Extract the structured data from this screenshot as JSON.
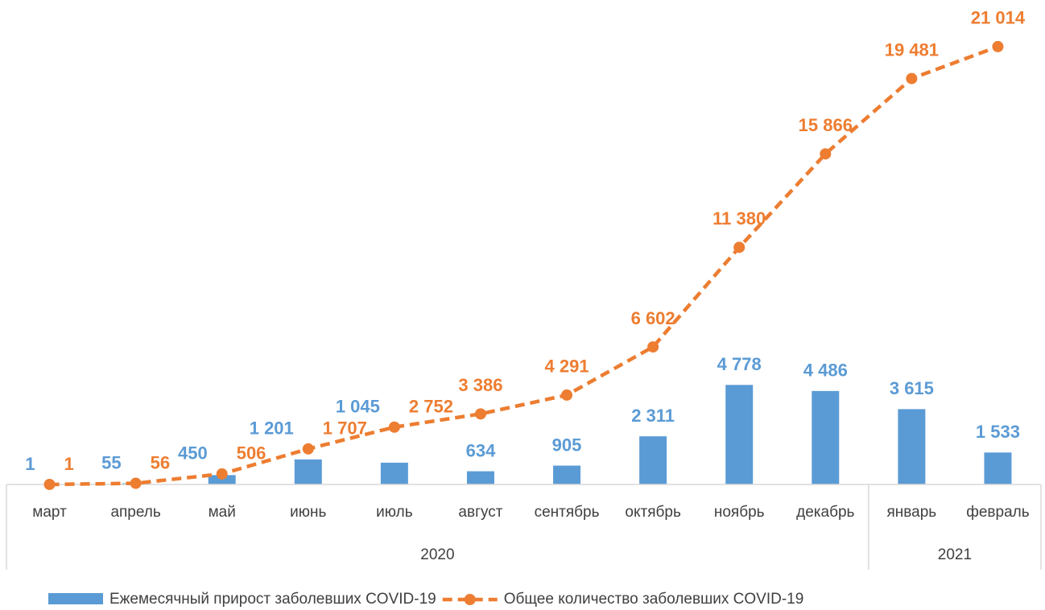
{
  "chart_data": {
    "type": "bar-line",
    "categories": [
      "март",
      "апрель",
      "май",
      "июнь",
      "июль",
      "август",
      "сентябрь",
      "октябрь",
      "ноябрь",
      "декабрь",
      "январь",
      "февраль"
    ],
    "x_groups": [
      {
        "label": "2020",
        "span": 10
      },
      {
        "label": "2021",
        "span": 2
      }
    ],
    "series": [
      {
        "name": "Ежемесячный прирост заболевших COVID-19",
        "type": "bar",
        "color": "#5b9bd5",
        "values": [
          1,
          55,
          450,
          1201,
          1045,
          634,
          905,
          2311,
          4778,
          4486,
          3615,
          1533
        ],
        "value_labels": [
          "1",
          "55",
          "450",
          "1 201",
          "1 045",
          "634",
          "905",
          "2 311",
          "4 778",
          "4 486",
          "3 615",
          "1 533"
        ]
      },
      {
        "name": "Общее количество заболевших COVID-19",
        "type": "line",
        "color": "#ed7d31",
        "values": [
          1,
          56,
          506,
          1707,
          2752,
          3386,
          4291,
          6602,
          11380,
          15866,
          19481,
          21014
        ],
        "value_labels": [
          "1",
          "56",
          "506",
          "1 707",
          "2 752",
          "3 386",
          "4 291",
          "6 602",
          "11 380",
          "15 866",
          "19 481",
          "21 014"
        ]
      }
    ],
    "ylim": [
      0,
      23000
    ],
    "legend": "bottom"
  }
}
